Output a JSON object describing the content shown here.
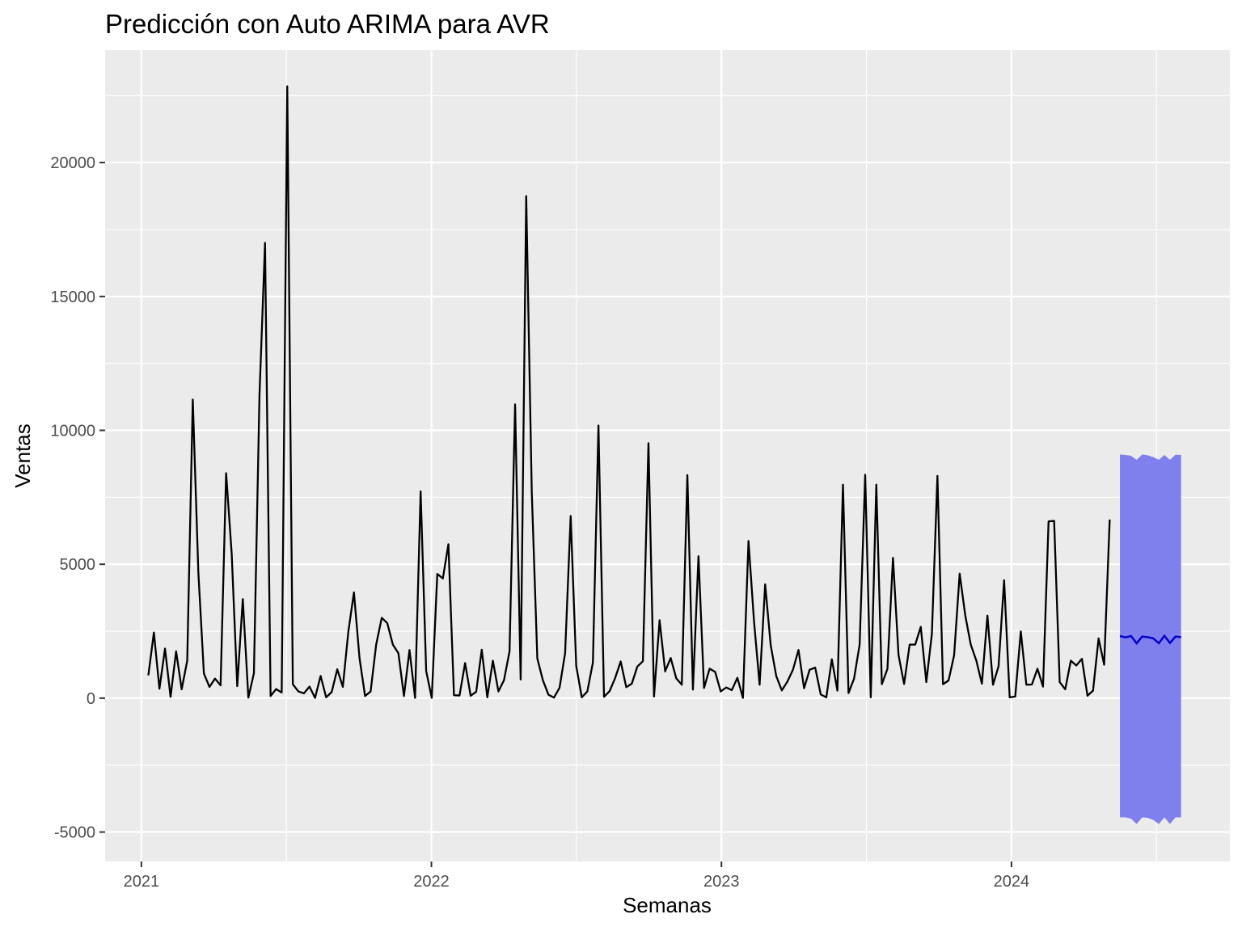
{
  "chart_data": {
    "type": "line",
    "title": "Predicción con Auto ARIMA para AVR",
    "xlabel": "Semanas",
    "ylabel": "Ventas",
    "x_ticks": [
      "2021",
      "2022",
      "2023",
      "2024"
    ],
    "y_ticks": [
      -5000,
      0,
      5000,
      10000,
      15000,
      20000
    ],
    "xlim": [
      2020.875,
      2024.753
    ],
    "ylim": [
      -6100,
      24200
    ],
    "grid": true,
    "legend": "none",
    "colors": {
      "panel": "#ebebeb",
      "grid": "#ffffff",
      "history": "#000000",
      "forecast": "#0000cc",
      "interval": "#7f7fee"
    },
    "series": [
      {
        "kind": "history",
        "start_year": 2021.024,
        "step_years": 0.01916,
        "values": [
          850,
          2450,
          350,
          1850,
          50,
          1750,
          330,
          1400,
          11150,
          4700,
          920,
          420,
          730,
          480,
          8400,
          5400,
          450,
          3700,
          20,
          930,
          11300,
          17000,
          80,
          340,
          210,
          22850,
          520,
          250,
          180,
          430,
          10,
          830,
          30,
          230,
          1080,
          420,
          2500,
          3950,
          1500,
          80,
          250,
          2000,
          3000,
          2800,
          2000,
          1680,
          80,
          1800,
          10,
          7720,
          1010,
          10,
          4640,
          4470,
          5750,
          110,
          100,
          1310,
          90,
          240,
          1810,
          30,
          1400,
          250,
          670,
          1750,
          10970,
          700,
          18750,
          7700,
          1480,
          670,
          130,
          20,
          390,
          1680,
          6800,
          1200,
          30,
          250,
          1330,
          10180,
          50,
          260,
          750,
          1370,
          410,
          540,
          1180,
          1380,
          9520,
          60,
          2910,
          1000,
          1500,
          740,
          500,
          8330,
          320,
          5300,
          380,
          1100,
          980,
          250,
          400,
          300,
          760,
          10,
          5870,
          2850,
          500,
          4250,
          1970,
          820,
          290,
          620,
          1060,
          1800,
          370,
          1060,
          1140,
          140,
          30,
          1450,
          280,
          7970,
          190,
          730,
          2000,
          8340,
          30,
          7970,
          520,
          1090,
          5240,
          1610,
          530,
          2000,
          2000,
          2660,
          600,
          2400,
          8300,
          520,
          660,
          1600,
          4650,
          3100,
          2000,
          1400,
          540,
          3080,
          500,
          1190,
          4400,
          30,
          60,
          2490,
          500,
          510,
          1100,
          430,
          6600,
          6620,
          600,
          330,
          1400,
          1220,
          1470,
          90,
          280,
          2230,
          1250,
          6670
        ]
      },
      {
        "kind": "forecast",
        "start_year": 2024.374,
        "step_years": 0.01916,
        "values": [
          2320,
          2270,
          2320,
          2050,
          2300,
          2280,
          2230,
          2050,
          2330,
          2060,
          2300,
          2280
        ],
        "lower": [
          -4450,
          -4450,
          -4500,
          -4700,
          -4450,
          -4470,
          -4550,
          -4700,
          -4450,
          -4700,
          -4450,
          -4450
        ],
        "upper": [
          9100,
          9080,
          9050,
          8900,
          9100,
          9070,
          9000,
          8900,
          9080,
          8900,
          9090,
          9080
        ]
      }
    ]
  }
}
